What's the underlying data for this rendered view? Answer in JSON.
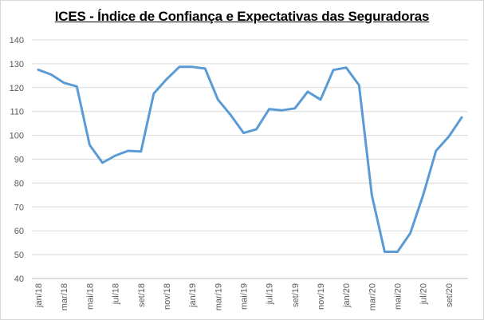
{
  "chart_data": {
    "type": "line",
    "title": "ICES - Índice de Confiança e Expectativas das Seguradoras",
    "xlabel": "",
    "ylabel": "",
    "ylim": [
      40,
      140
    ],
    "yticks": [
      40,
      50,
      60,
      70,
      80,
      90,
      100,
      110,
      120,
      130,
      140
    ],
    "grid": true,
    "legend": "none",
    "categories": [
      "jan/18",
      "fev/18",
      "mar/18",
      "abr/18",
      "mai/18",
      "jun/18",
      "jul/18",
      "ago/18",
      "set/18",
      "out/18",
      "nov/18",
      "dez/18",
      "jan/19",
      "fev/19",
      "mar/19",
      "abr/19",
      "mai/19",
      "jun/19",
      "jul/19",
      "ago/19",
      "set/19",
      "out/19",
      "nov/19",
      "dez/19",
      "jan/20",
      "fev/20",
      "mar/20",
      "abr/20",
      "mai/20",
      "jun/20",
      "jul/20",
      "ago/20",
      "set/20",
      "out/20"
    ],
    "tick_labels": [
      "jan/18",
      "mar/18",
      "mai/18",
      "jul/18",
      "set/18",
      "nov/18",
      "jan/19",
      "mar/19",
      "mai/19",
      "jul/19",
      "set/19",
      "nov/19",
      "jan/20",
      "mar/20",
      "mai/20",
      "jul/20",
      "set/20"
    ],
    "series": [
      {
        "color": "#5b9bd5",
        "values": [
          127.5,
          125.5,
          122.0,
          120.5,
          96.0,
          88.5,
          91.5,
          93.5,
          93.2,
          117.5,
          123.5,
          128.7,
          128.7,
          128.0,
          115.0,
          108.5,
          101.0,
          102.5,
          111.0,
          110.5,
          111.3,
          118.3,
          115.0,
          127.4,
          128.4,
          121.0,
          75.0,
          51.2,
          51.2,
          59.0,
          75.0,
          93.5,
          99.5,
          107.5
        ]
      }
    ]
  }
}
